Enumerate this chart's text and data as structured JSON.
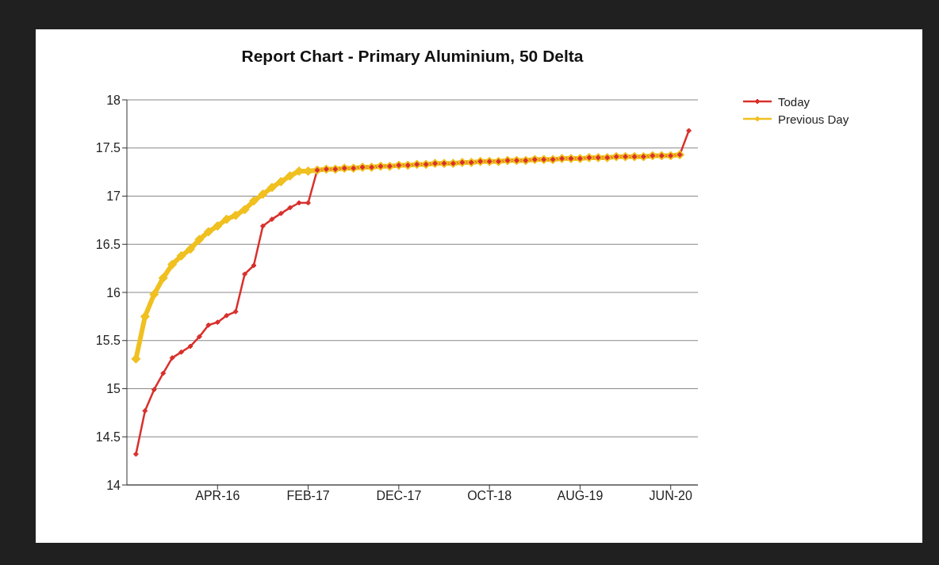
{
  "chart_data": {
    "type": "line",
    "title": "Report Chart - Primary Aluminium, 50 Delta",
    "x": [
      "2015-07",
      "2015-08",
      "2015-09",
      "2015-10",
      "2015-11",
      "2015-12",
      "2016-01",
      "2016-02",
      "2016-03",
      "2016-04",
      "2016-05",
      "2016-06",
      "2016-07",
      "2016-08",
      "2016-09",
      "2016-10",
      "2016-11",
      "2016-12",
      "2017-01",
      "2017-02",
      "2017-03",
      "2017-04",
      "2017-05",
      "2017-06",
      "2017-07",
      "2017-08",
      "2017-09",
      "2017-10",
      "2017-11",
      "2017-12",
      "2018-01",
      "2018-02",
      "2018-03",
      "2018-04",
      "2018-05",
      "2018-06",
      "2018-07",
      "2018-08",
      "2018-09",
      "2018-10",
      "2018-11",
      "2018-12",
      "2019-01",
      "2019-02",
      "2019-03",
      "2019-04",
      "2019-05",
      "2019-06",
      "2019-07",
      "2019-08",
      "2019-09",
      "2019-10",
      "2019-11",
      "2019-12",
      "2020-01",
      "2020-02",
      "2020-03",
      "2020-04",
      "2020-05",
      "2020-06",
      "2020-07",
      "2020-08"
    ],
    "series": [
      {
        "name": "Today",
        "color": "#d9302c",
        "values": [
          14.32,
          14.77,
          14.99,
          15.16,
          15.32,
          15.38,
          15.44,
          15.54,
          15.66,
          15.69,
          15.76,
          15.8,
          16.19,
          16.28,
          16.69,
          16.76,
          16.82,
          16.88,
          16.93,
          16.93,
          17.27,
          17.28,
          17.28,
          17.29,
          17.29,
          17.3,
          17.3,
          17.31,
          17.31,
          17.32,
          17.32,
          17.33,
          17.33,
          17.34,
          17.34,
          17.34,
          17.35,
          17.35,
          17.36,
          17.36,
          17.36,
          17.37,
          17.37,
          17.37,
          17.38,
          17.38,
          17.38,
          17.39,
          17.39,
          17.39,
          17.4,
          17.4,
          17.4,
          17.41,
          17.41,
          17.41,
          17.41,
          17.42,
          17.42,
          17.42,
          17.43,
          17.68
        ]
      },
      {
        "name": "Previous Day",
        "color": "#f0c020",
        "values": [
          15.31,
          15.75,
          15.98,
          16.15,
          16.29,
          16.38,
          16.45,
          16.55,
          16.63,
          16.69,
          16.76,
          16.8,
          16.86,
          16.95,
          17.02,
          17.09,
          17.15,
          17.21,
          17.26,
          17.26,
          17.27,
          17.28,
          17.28,
          17.29,
          17.29,
          17.3,
          17.3,
          17.31,
          17.31,
          17.32,
          17.32,
          17.33,
          17.33,
          17.34,
          17.34,
          17.34,
          17.35,
          17.35,
          17.36,
          17.36,
          17.36,
          17.37,
          17.37,
          17.37,
          17.38,
          17.38,
          17.38,
          17.39,
          17.39,
          17.39,
          17.4,
          17.4,
          17.4,
          17.41,
          17.41,
          17.41,
          17.41,
          17.42,
          17.42,
          17.42,
          17.43,
          null
        ]
      }
    ],
    "xlim": [
      "2015-06",
      "2020-09"
    ],
    "xticks": [
      {
        "value": "2016-04",
        "label": "APR-16"
      },
      {
        "value": "2017-02",
        "label": "FEB-17"
      },
      {
        "value": "2017-12",
        "label": "DEC-17"
      },
      {
        "value": "2018-10",
        "label": "OCT-18"
      },
      {
        "value": "2019-08",
        "label": "AUG-19"
      },
      {
        "value": "2020-06",
        "label": "JUN-20"
      }
    ],
    "ylim": [
      14,
      18
    ],
    "yticks": [
      14,
      14.5,
      15,
      15.5,
      16,
      16.5,
      17,
      17.5,
      18
    ],
    "grid": "y",
    "legend": "top right",
    "marker": "diamond",
    "line_style": "solid"
  }
}
